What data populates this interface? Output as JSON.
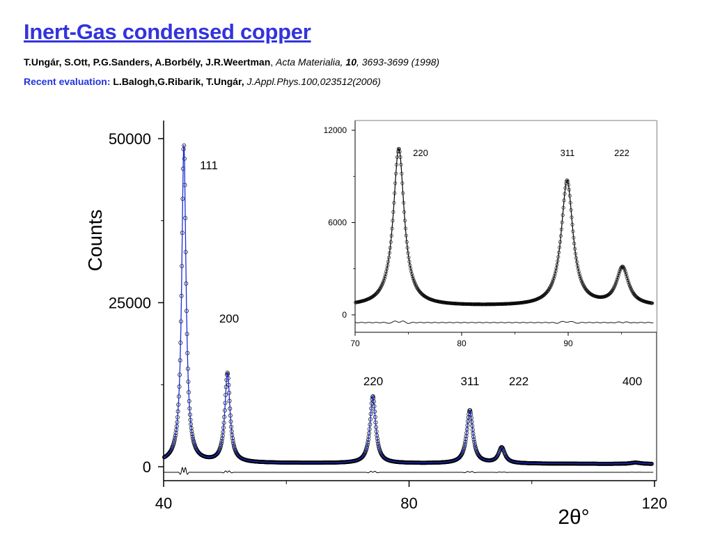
{
  "header": {
    "title": "Inert-Gas condensed copper",
    "ref1": {
      "authors": "T.Ungár, S.Ott, P.G.Sanders, A.Borbély, J.R.Weertman",
      "sep": ", ",
      "journal": "Acta Materialia, ",
      "volume": "10",
      "pages": ", 3693-3699 (1998)"
    },
    "ref2": {
      "label": "Recent evaluation:",
      "authors": " L.Balogh,G.Ribarik, T.Ungár, ",
      "journal": "J.Appl.Phys.100,023512(2006)"
    }
  },
  "colors": {
    "title": "#3333dd",
    "fit": "#1a2bd6",
    "data": "#000000"
  },
  "chart_data": [
    {
      "type": "line",
      "title": "",
      "xlabel": "2θ°",
      "ylabel": "Counts",
      "xlim": [
        40,
        120
      ],
      "ylim": [
        -2000,
        55000
      ],
      "xticks": [
        40,
        80,
        120
      ],
      "yticks": [
        0,
        25000,
        50000
      ],
      "grid": false,
      "series": [
        {
          "name": "",
          "kind": "measured",
          "marker": "circle"
        },
        {
          "name": "",
          "kind": "fit"
        },
        {
          "name": "",
          "kind": "difference",
          "offset": -800
        }
      ],
      "peaks": [
        {
          "label": "111",
          "x": 43.3,
          "y": 49000,
          "width": 0.42
        },
        {
          "label": "200",
          "x": 50.4,
          "y": 14200,
          "width": 0.5
        },
        {
          "label": "220",
          "x": 74.1,
          "y": 10800,
          "width": 0.55
        },
        {
          "label": "311",
          "x": 89.9,
          "y": 8700,
          "width": 0.6
        },
        {
          "label": "222",
          "x": 95.1,
          "y": 3000,
          "width": 0.62
        },
        {
          "label": "400",
          "x": 116.9,
          "y": 800,
          "width": 1.0
        }
      ],
      "background": 600
    },
    {
      "type": "line",
      "title": "",
      "xlabel": "",
      "ylabel": "",
      "xlim": [
        70,
        98
      ],
      "ylim": [
        -800,
        12500
      ],
      "xticks": [
        70,
        80,
        90
      ],
      "yticks": [
        0,
        6000,
        12000
      ],
      "grid": false,
      "peaks": [
        {
          "label": "220",
          "x": 74.1,
          "y": 10800
        },
        {
          "label": "311",
          "x": 89.9,
          "y": 8700
        },
        {
          "label": "222",
          "x": 95.1,
          "y": 3000
        }
      ]
    }
  ]
}
